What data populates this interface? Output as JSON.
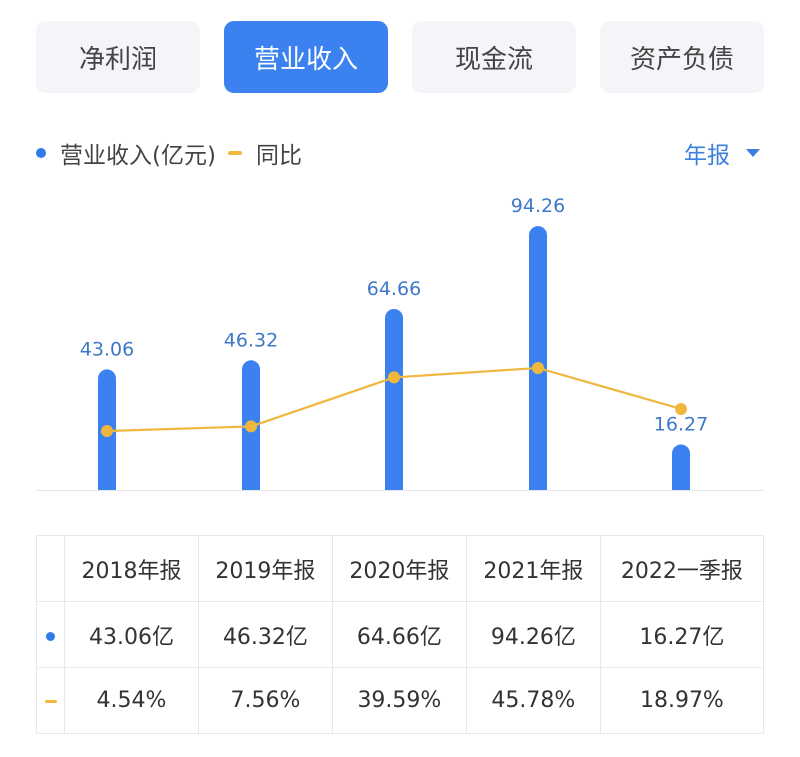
{
  "tabs": [
    {
      "label": "净利润",
      "active": false
    },
    {
      "label": "营业收入",
      "active": true
    },
    {
      "label": "现金流",
      "active": false
    },
    {
      "label": "资产负债",
      "active": false
    }
  ],
  "legend": {
    "revenue_label": "营业收入(亿元)",
    "yoy_label": "同比"
  },
  "period": {
    "selected": "年报"
  },
  "colors": {
    "bar": "#3b82f0",
    "line": "#f0b73e",
    "accent": "#3b7fe0",
    "negative_pct": "#d8474b"
  },
  "chart_data": {
    "type": "bar",
    "categories": [
      "2018年报",
      "2019年报",
      "2020年报",
      "2021年报",
      "2022一季报"
    ],
    "series": [
      {
        "name": "营业收入(亿元)",
        "type": "bar",
        "values": [
          43.06,
          46.32,
          64.66,
          94.26,
          16.27
        ]
      },
      {
        "name": "同比",
        "type": "line",
        "values": [
          4.54,
          7.56,
          39.59,
          45.78,
          18.97
        ]
      }
    ],
    "data_labels": [
      "43.06",
      "46.32",
      "64.66",
      "94.26",
      "16.27"
    ],
    "legend_position": "top-left",
    "grid": false
  },
  "table": {
    "headers": [
      "2018年报",
      "2019年报",
      "2020年报",
      "2021年报",
      "2022一季报"
    ],
    "revenue_row": [
      "43.06亿",
      "46.32亿",
      "64.66亿",
      "94.26亿",
      "16.27亿"
    ],
    "yoy_row": [
      "4.54%",
      "7.56%",
      "39.59%",
      "45.78%",
      "18.97%"
    ]
  }
}
